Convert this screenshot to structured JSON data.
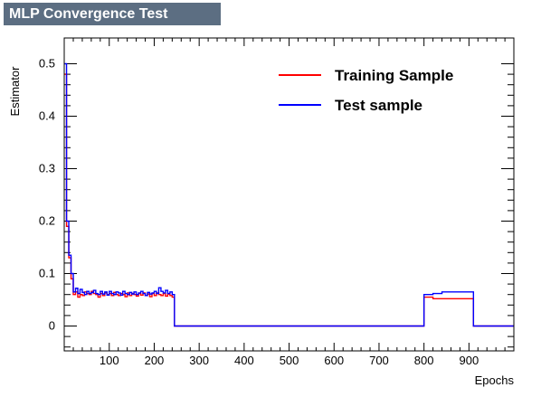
{
  "chart_data": {
    "type": "line",
    "title": "MLP Convergence Test",
    "xlabel": "Epochs",
    "ylabel": "Estimator",
    "xlim": [
      0,
      1000
    ],
    "ylim": [
      -0.05,
      0.53
    ],
    "x_ticks": [
      "100",
      "200",
      "300",
      "400",
      "500",
      "600",
      "700",
      "800",
      "900"
    ],
    "y_ticks": [
      "0",
      "0.1",
      "0.2",
      "0.3",
      "0.4",
      "0.5"
    ],
    "legend_position": "top-right",
    "series": [
      {
        "name": "Training Sample",
        "color": "#ff0000",
        "step": [
          [
            0,
            0.48
          ],
          [
            5,
            0.19
          ],
          [
            10,
            0.13
          ],
          [
            15,
            0.09
          ],
          [
            20,
            0.06
          ],
          [
            25,
            0.065
          ],
          [
            30,
            0.055
          ],
          [
            35,
            0.06
          ],
          [
            40,
            0.058
          ],
          [
            45,
            0.065
          ],
          [
            50,
            0.062
          ],
          [
            55,
            0.06
          ],
          [
            60,
            0.066
          ],
          [
            65,
            0.062
          ],
          [
            70,
            0.06
          ],
          [
            75,
            0.055
          ],
          [
            80,
            0.062
          ],
          [
            85,
            0.058
          ],
          [
            90,
            0.063
          ],
          [
            95,
            0.06
          ],
          [
            100,
            0.062
          ],
          [
            105,
            0.058
          ],
          [
            110,
            0.064
          ],
          [
            115,
            0.06
          ],
          [
            120,
            0.058
          ],
          [
            125,
            0.062
          ],
          [
            130,
            0.06
          ],
          [
            135,
            0.056
          ],
          [
            140,
            0.063
          ],
          [
            145,
            0.058
          ],
          [
            150,
            0.062
          ],
          [
            155,
            0.06
          ],
          [
            160,
            0.057
          ],
          [
            165,
            0.062
          ],
          [
            170,
            0.059
          ],
          [
            175,
            0.063
          ],
          [
            180,
            0.058
          ],
          [
            185,
            0.061
          ],
          [
            190,
            0.056
          ],
          [
            195,
            0.062
          ],
          [
            200,
            0.058
          ],
          [
            205,
            0.063
          ],
          [
            210,
            0.06
          ],
          [
            215,
            0.058
          ],
          [
            220,
            0.062
          ],
          [
            225,
            0.057
          ],
          [
            230,
            0.061
          ],
          [
            235,
            0.058
          ],
          [
            240,
            0.055
          ],
          [
            245,
            0.0
          ],
          [
            800,
            0.055
          ],
          [
            820,
            0.052
          ],
          [
            910,
            0.0
          ],
          [
            1000,
            0.0
          ]
        ]
      },
      {
        "name": "Test sample",
        "color": "#0000ff",
        "step": [
          [
            0,
            0.5
          ],
          [
            5,
            0.2
          ],
          [
            10,
            0.135
          ],
          [
            15,
            0.1
          ],
          [
            20,
            0.065
          ],
          [
            25,
            0.072
          ],
          [
            30,
            0.062
          ],
          [
            35,
            0.07
          ],
          [
            40,
            0.064
          ],
          [
            45,
            0.06
          ],
          [
            50,
            0.066
          ],
          [
            55,
            0.062
          ],
          [
            60,
            0.064
          ],
          [
            65,
            0.068
          ],
          [
            70,
            0.062
          ],
          [
            75,
            0.06
          ],
          [
            80,
            0.066
          ],
          [
            85,
            0.061
          ],
          [
            90,
            0.065
          ],
          [
            95,
            0.059
          ],
          [
            100,
            0.066
          ],
          [
            105,
            0.062
          ],
          [
            110,
            0.06
          ],
          [
            115,
            0.065
          ],
          [
            120,
            0.063
          ],
          [
            125,
            0.059
          ],
          [
            130,
            0.066
          ],
          [
            135,
            0.062
          ],
          [
            140,
            0.06
          ],
          [
            145,
            0.064
          ],
          [
            150,
            0.061
          ],
          [
            155,
            0.065
          ],
          [
            160,
            0.06
          ],
          [
            165,
            0.063
          ],
          [
            170,
            0.066
          ],
          [
            175,
            0.062
          ],
          [
            180,
            0.058
          ],
          [
            185,
            0.064
          ],
          [
            190,
            0.061
          ],
          [
            195,
            0.063
          ],
          [
            200,
            0.066
          ],
          [
            205,
            0.062
          ],
          [
            210,
            0.073
          ],
          [
            215,
            0.066
          ],
          [
            220,
            0.063
          ],
          [
            225,
            0.068
          ],
          [
            230,
            0.062
          ],
          [
            235,
            0.065
          ],
          [
            240,
            0.06
          ],
          [
            245,
            0.0
          ],
          [
            800,
            0.06
          ],
          [
            820,
            0.062
          ],
          [
            840,
            0.065
          ],
          [
            910,
            0.0
          ],
          [
            1000,
            0.0
          ]
        ]
      }
    ]
  }
}
